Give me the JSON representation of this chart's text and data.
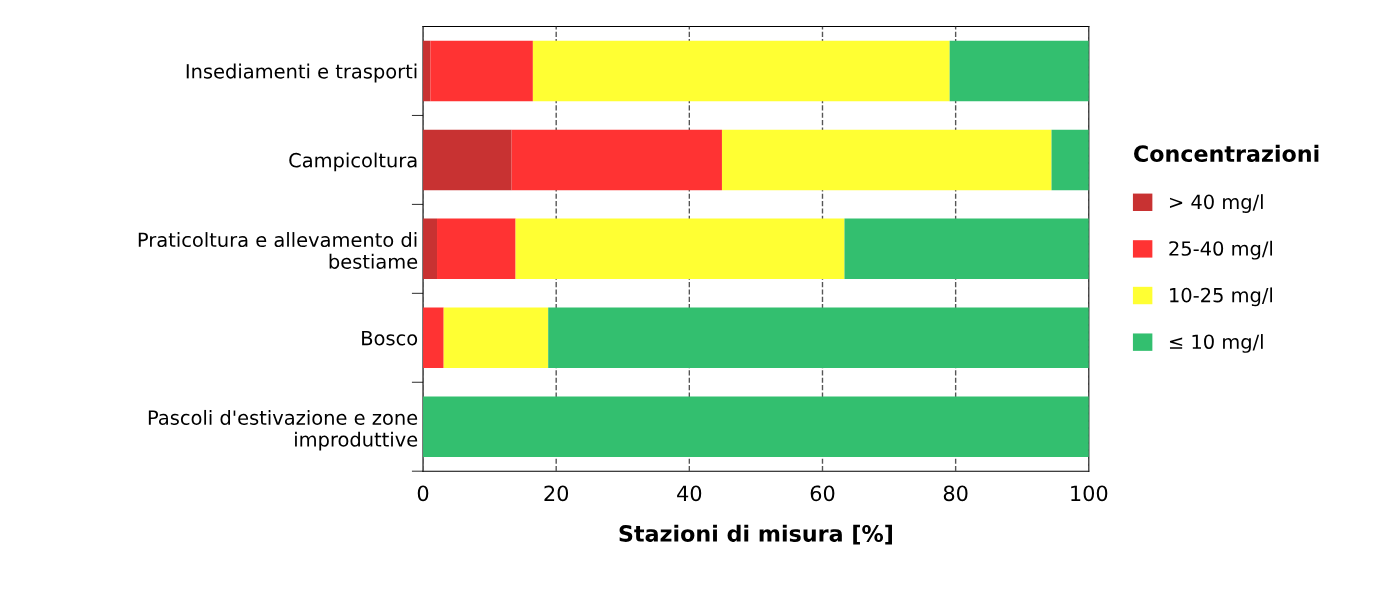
{
  "chart_data": {
    "type": "bar",
    "orientation": "horizontal",
    "stacked": true,
    "categories": [
      "Insediamenti e trasporti",
      "Campicoltura",
      "Praticoltura e allevamento di\nbestiame",
      "Bosco",
      "Pascoli d'estivazione e zone\nimproduttive"
    ],
    "series": [
      {
        "name": "> 40 mg/l",
        "color": "#c83232",
        "values": [
          1.1,
          13.3,
          2.1,
          0,
          0
        ]
      },
      {
        "name": "25-40 mg/l",
        "color": "#ff3333",
        "values": [
          15.4,
          31.6,
          11.8,
          3.1,
          0
        ]
      },
      {
        "name": "10-25 mg/l",
        "color": "#ffff33",
        "values": [
          62.6,
          49.5,
          49.4,
          15.7,
          0
        ]
      },
      {
        "name": "≤ 10 mg/l",
        "color": "#33bf6f",
        "values": [
          20.9,
          5.6,
          36.7,
          81.2,
          100
        ]
      }
    ],
    "xlabel": "Stazioni di misura [%]",
    "legend_title": "Concentrazioni",
    "xlim": [
      0,
      100
    ],
    "xticks": [
      0,
      20,
      40,
      60,
      80,
      100
    ],
    "grid": "x",
    "line_style": "dashed",
    "legend": "right"
  }
}
